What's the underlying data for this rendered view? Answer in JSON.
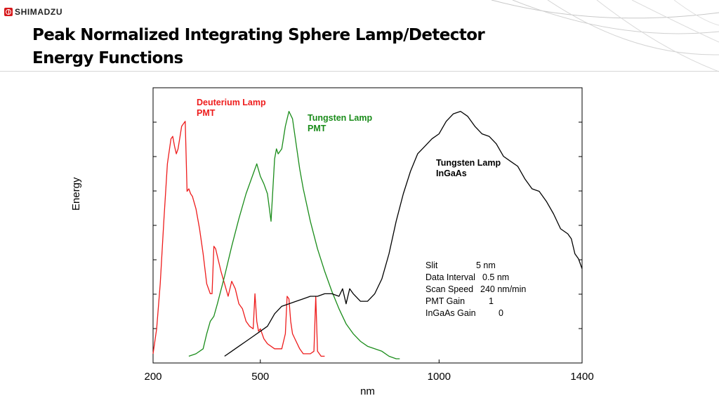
{
  "header": {
    "logo_text": "SHIMADZU",
    "title_line1": "Peak Normalized Integrating Sphere Lamp/Detector",
    "title_line2": "Energy Functions"
  },
  "chart_data": {
    "type": "line",
    "title": "Peak Normalized Integrating Sphere Lamp/Detector Energy Functions",
    "xlabel": "nm",
    "ylabel": "Energy",
    "xlim": [
      200,
      1400
    ],
    "ylim": [
      0,
      1
    ],
    "x_ticks": [
      200,
      500,
      1000,
      1400
    ],
    "x_tick_labels": [
      "200",
      "500",
      "1000",
      "1400"
    ],
    "grid": false,
    "series": [
      {
        "name": "Deuterium Lamp PMT",
        "label_lines": [
          "Deuterium Lamp",
          "PMT"
        ],
        "color": "#ee1c1c",
        "x": [
          200,
          210,
          220,
          230,
          240,
          250,
          255,
          260,
          265,
          270,
          280,
          290,
          295,
          300,
          305,
          310,
          320,
          330,
          340,
          350,
          360,
          365,
          370,
          375,
          380,
          390,
          400,
          410,
          420,
          430,
          440,
          450,
          460,
          470,
          480,
          485,
          490,
          495,
          500,
          510,
          520,
          540,
          560,
          570,
          575,
          580,
          585,
          590,
          600,
          610,
          620,
          640,
          650,
          655,
          660,
          665,
          670,
          680
        ],
        "y": [
          0.02,
          0.12,
          0.3,
          0.55,
          0.78,
          0.88,
          0.89,
          0.85,
          0.82,
          0.84,
          0.93,
          0.95,
          0.67,
          0.68,
          0.66,
          0.65,
          0.6,
          0.52,
          0.42,
          0.3,
          0.26,
          0.26,
          0.45,
          0.44,
          0.41,
          0.35,
          0.3,
          0.25,
          0.31,
          0.28,
          0.22,
          0.2,
          0.15,
          0.13,
          0.12,
          0.26,
          0.15,
          0.11,
          0.12,
          0.08,
          0.06,
          0.04,
          0.04,
          0.1,
          0.25,
          0.24,
          0.15,
          0.1,
          0.07,
          0.04,
          0.02,
          0.02,
          0.03,
          0.25,
          0.03,
          0.02,
          0.01,
          0.01
        ]
      },
      {
        "name": "Tungsten Lamp PMT",
        "label_lines": [
          "Tungsten Lamp",
          "PMT"
        ],
        "color": "#1a8c1a",
        "x": [
          300,
          320,
          340,
          350,
          360,
          370,
          380,
          400,
          420,
          440,
          460,
          480,
          490,
          500,
          510,
          520,
          530,
          540,
          545,
          550,
          560,
          570,
          580,
          590,
          600,
          610,
          620,
          640,
          660,
          680,
          700,
          720,
          740,
          760,
          780,
          800,
          820,
          840,
          860,
          880,
          890
        ],
        "y": [
          0.01,
          0.02,
          0.04,
          0.1,
          0.15,
          0.17,
          0.22,
          0.33,
          0.45,
          0.56,
          0.66,
          0.74,
          0.78,
          0.73,
          0.7,
          0.66,
          0.55,
          0.8,
          0.84,
          0.82,
          0.84,
          0.93,
          0.99,
          0.96,
          0.86,
          0.76,
          0.68,
          0.55,
          0.44,
          0.35,
          0.27,
          0.2,
          0.14,
          0.1,
          0.07,
          0.05,
          0.04,
          0.03,
          0.01,
          0.0,
          0.0
        ]
      },
      {
        "name": "Tungsten Lamp InGaAs",
        "label_lines": [
          "Tungsten Lamp",
          "InGaAs"
        ],
        "color": "#000000",
        "x": [
          400,
          420,
          440,
          460,
          480,
          500,
          520,
          540,
          560,
          580,
          600,
          620,
          640,
          660,
          680,
          700,
          720,
          730,
          740,
          750,
          760,
          780,
          800,
          820,
          840,
          860,
          880,
          900,
          920,
          940,
          960,
          980,
          1000,
          1020,
          1040,
          1060,
          1080,
          1100,
          1120,
          1140,
          1160,
          1180,
          1200,
          1220,
          1240,
          1260,
          1280,
          1300,
          1320,
          1340,
          1360,
          1370,
          1380,
          1390,
          1400
        ],
        "y": [
          0.01,
          0.03,
          0.05,
          0.07,
          0.09,
          0.11,
          0.13,
          0.18,
          0.21,
          0.22,
          0.23,
          0.24,
          0.25,
          0.25,
          0.26,
          0.26,
          0.25,
          0.28,
          0.22,
          0.28,
          0.26,
          0.23,
          0.23,
          0.26,
          0.32,
          0.42,
          0.55,
          0.66,
          0.75,
          0.82,
          0.85,
          0.88,
          0.9,
          0.95,
          0.98,
          0.99,
          0.97,
          0.93,
          0.9,
          0.89,
          0.86,
          0.81,
          0.79,
          0.77,
          0.72,
          0.68,
          0.67,
          0.63,
          0.58,
          0.52,
          0.5,
          0.48,
          0.42,
          0.4,
          0.36
        ]
      }
    ],
    "annotation": {
      "rows": [
        {
          "label": "Slit",
          "value": "5 nm"
        },
        {
          "label": "Data Interval",
          "value": "0.5 nm"
        },
        {
          "label": "Scan Speed",
          "value": "240 nm/min"
        },
        {
          "label": "PMT Gain",
          "value": "1"
        },
        {
          "label": "InGaAs Gain",
          "value": "0"
        }
      ]
    }
  }
}
